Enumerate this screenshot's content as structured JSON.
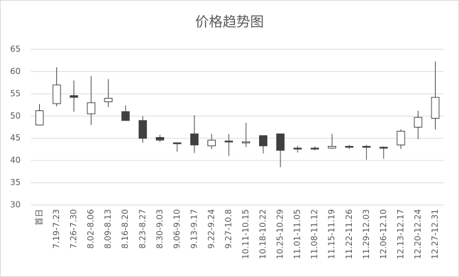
{
  "chart_data": {
    "type": "candlestick",
    "title": "价格趋势图",
    "categories": [
      "首日",
      "7.19-7.23",
      "7.26-7.30",
      "8.02-8.06",
      "8.09-8.13",
      "8.16-8.20",
      "8.23-8.27",
      "8.30-9.03",
      "9.06-9.10",
      "9.13-9.17",
      "9.22-9.24",
      "9.27-10.8",
      "10.11-10.15",
      "10.18-10.22",
      "10.25-10.29",
      "11.01-11.05",
      "11.08-11.12",
      "11.15-11.19",
      "11.22-11.26",
      "11.29-12.03",
      "12.06-12.10",
      "12.13-12.17",
      "12.20-12.24",
      "12.27-12.31"
    ],
    "open": [
      48.0,
      52.8,
      54.6,
      50.5,
      53.2,
      51.0,
      49.0,
      45.2,
      44.0,
      46.0,
      43.3,
      44.4,
      44.0,
      45.6,
      46.0,
      42.8,
      42.8,
      42.8,
      43.2,
      43.2,
      43.0,
      43.5,
      47.5,
      49.5
    ],
    "high": [
      52.7,
      61.0,
      58.0,
      59.0,
      58.3,
      52.4,
      50.0,
      45.8,
      44.0,
      50.2,
      46.0,
      46.0,
      48.5,
      45.6,
      46.0,
      43.3,
      43.2,
      46.0,
      43.5,
      43.5,
      43.2,
      47.0,
      51.2,
      62.3
    ],
    "low": [
      48.0,
      52.2,
      51.0,
      48.0,
      52.0,
      49.0,
      44.0,
      44.2,
      42.0,
      41.7,
      42.6,
      41.0,
      43.0,
      41.6,
      38.5,
      41.8,
      42.3,
      42.6,
      42.6,
      40.2,
      40.4,
      42.6,
      44.8,
      47.0
    ],
    "close": [
      51.2,
      57.0,
      54.2,
      53.0,
      54.0,
      49.0,
      45.0,
      44.6,
      43.8,
      43.5,
      44.6,
      44.2,
      44.2,
      43.3,
      42.3,
      42.7,
      42.7,
      43.2,
      43.0,
      43.0,
      42.8,
      46.6,
      49.7,
      54.2
    ],
    "up_color": "#ffffff",
    "down_color": "#404040",
    "edge_color": "#404040",
    "ylim": [
      30,
      65
    ],
    "yticks": [
      30,
      35,
      40,
      45,
      50,
      55,
      60,
      65
    ],
    "grid": true
  }
}
